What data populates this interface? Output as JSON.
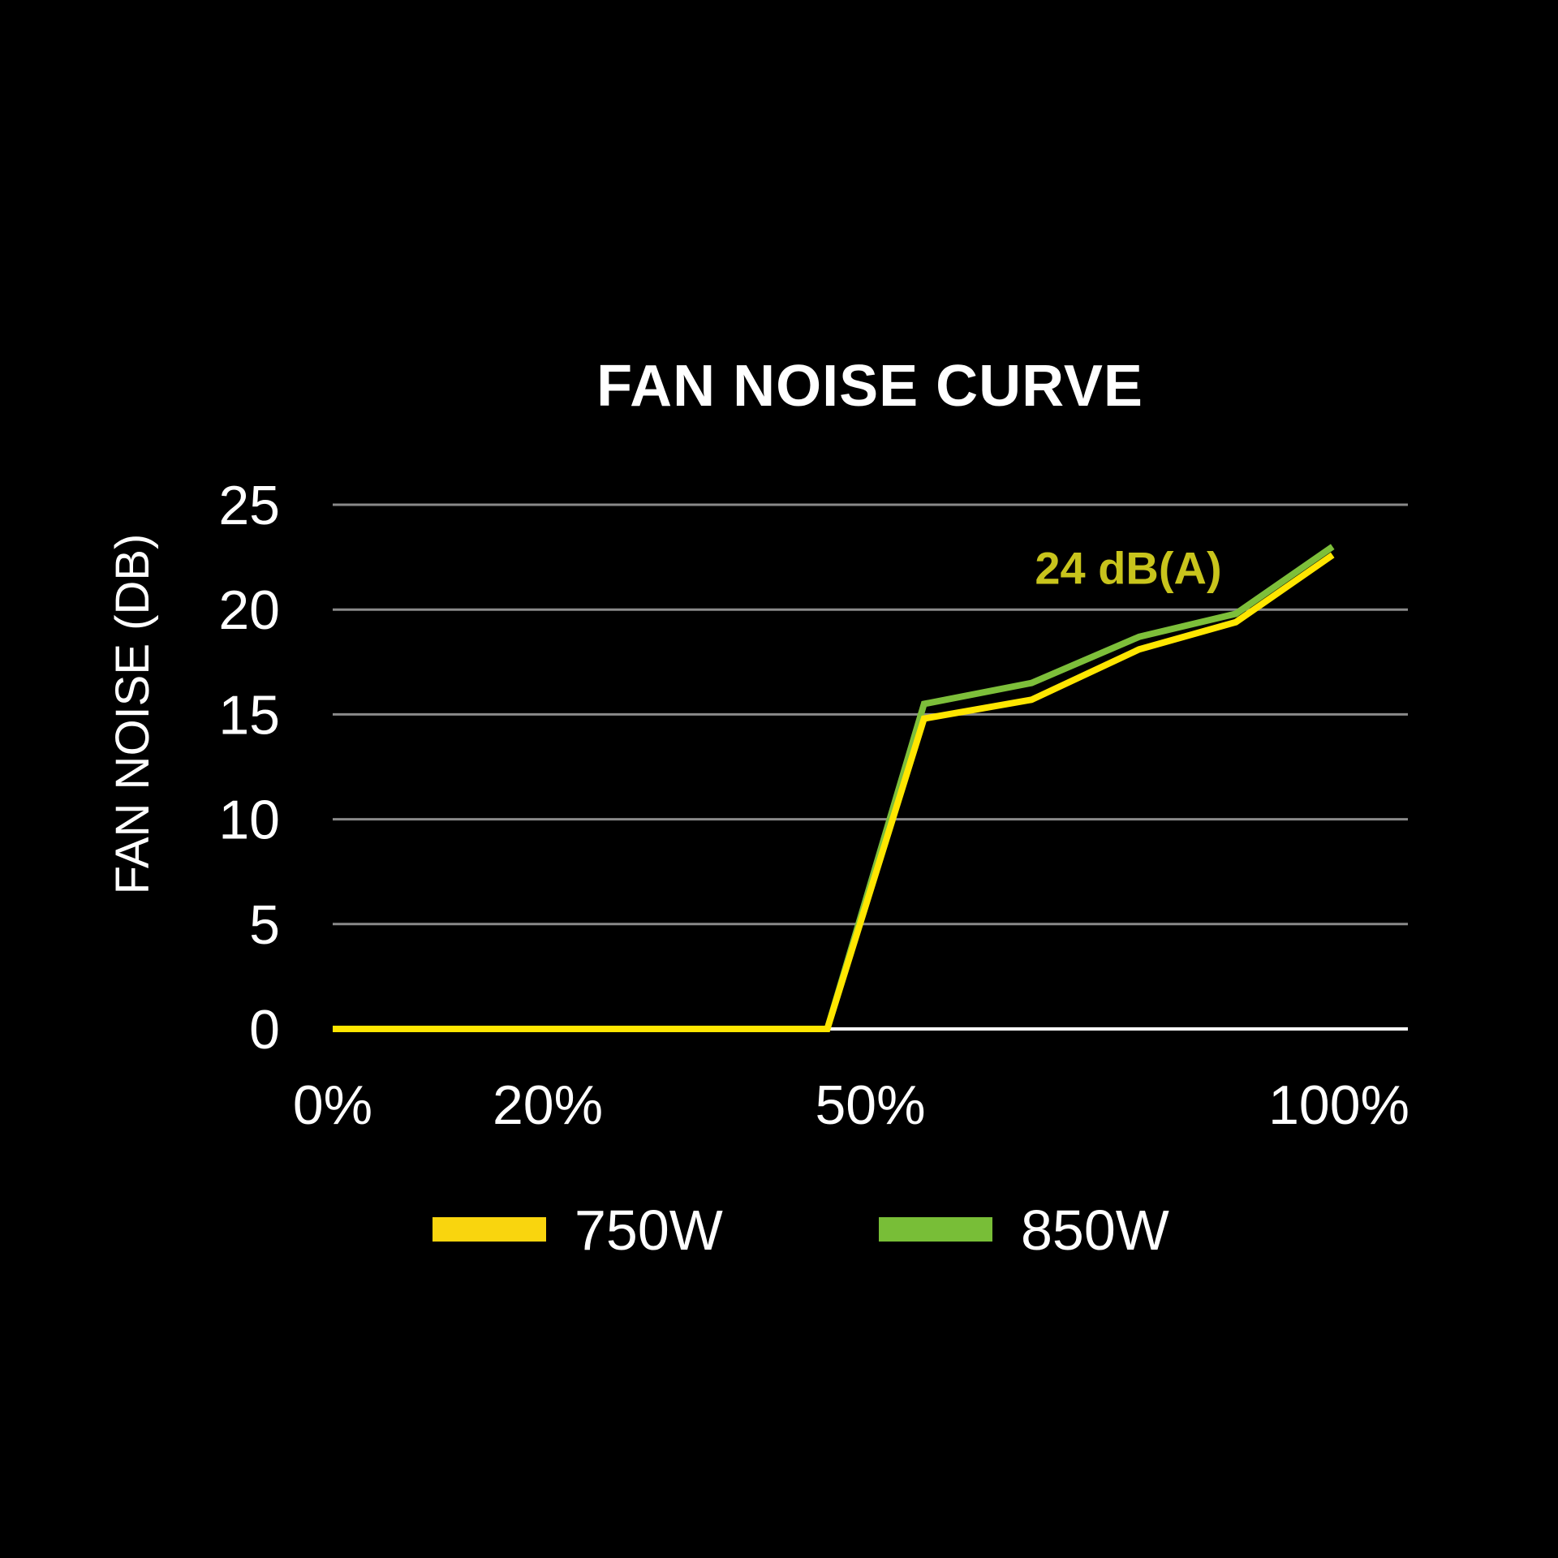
{
  "chart_data": {
    "type": "line",
    "title": "FAN NOISE CURVE",
    "ylabel": "FAN NOISE (DB)",
    "xlabel": "",
    "x_ticks": [
      {
        "value": 0,
        "label": "0%"
      },
      {
        "value": 20,
        "label": "20%"
      },
      {
        "value": 50,
        "label": "50%"
      },
      {
        "value": 100,
        "label": "100%"
      }
    ],
    "y_ticks": [
      0,
      5,
      10,
      15,
      20,
      25
    ],
    "xlim": [
      0,
      100
    ],
    "ylim": [
      0,
      25
    ],
    "grid": true,
    "legend_position": "bottom",
    "series": [
      {
        "name": "750W",
        "color": "#FFE600",
        "legend_color": "#F9D50E",
        "x": [
          0,
          46,
          55,
          65,
          75,
          84,
          93
        ],
        "y": [
          0,
          0,
          14.8,
          15.7,
          18.1,
          19.4,
          22.6
        ]
      },
      {
        "name": "850W",
        "color": "#7DBF3A",
        "legend_color": "#78BE37",
        "x": [
          0,
          46,
          55,
          65,
          75,
          84,
          93
        ],
        "y": [
          0,
          0,
          15.5,
          16.5,
          18.7,
          19.8,
          23.0
        ]
      }
    ],
    "annotations": [
      {
        "text": "24 dB(A)",
        "x": 74,
        "y": 22.0,
        "color": "#C8C41C"
      }
    ],
    "colors": {
      "background": "#000000",
      "text": "#FFFFFF",
      "grid": "#8A8A8A",
      "baseline": "#FFFFFF"
    }
  }
}
